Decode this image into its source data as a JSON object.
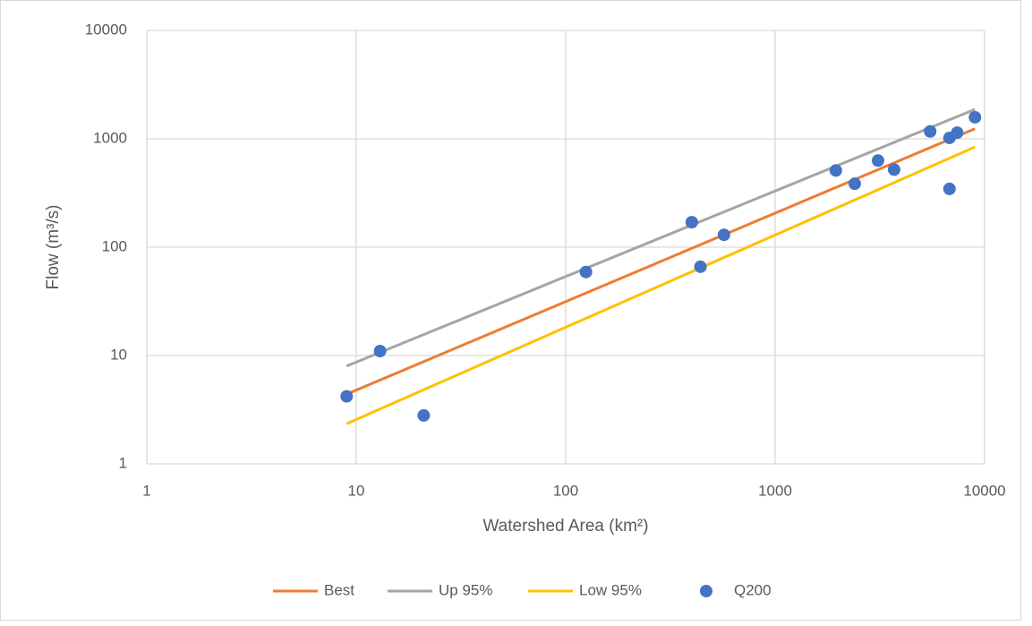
{
  "chart_data": {
    "type": "scatter",
    "x_label": "Watershed Area (km²)",
    "y_label": "Flow (m³/s)",
    "xscale": "log",
    "yscale": "log",
    "xlim": [
      1,
      10000
    ],
    "ylim": [
      1,
      10000
    ],
    "xticks": [
      1,
      10,
      100,
      1000,
      10000
    ],
    "yticks": [
      1,
      10,
      100,
      1000,
      10000
    ],
    "grid": true,
    "legend": "bottom",
    "series": [
      {
        "name": "Best",
        "kind": "line",
        "color": "#ed7d31",
        "x": [
          9,
          9000
        ],
        "values": [
          4.4,
          1240
        ]
      },
      {
        "name": "Up 95%",
        "kind": "line",
        "color": "#a5a5a5",
        "x": [
          9,
          9000
        ],
        "values": [
          8,
          1870
        ]
      },
      {
        "name": "Low 95%",
        "kind": "line",
        "color": "#ffc000",
        "x": [
          9,
          9000
        ],
        "values": [
          2.35,
          840
        ]
      },
      {
        "name": "Q200",
        "kind": "scatter",
        "color": "#4472c4",
        "x": [
          9,
          13,
          21,
          125,
          400,
          440,
          570,
          1950,
          2400,
          3100,
          3700,
          5500,
          6800,
          6800,
          7400,
          9000
        ],
        "values": [
          4.2,
          11,
          2.8,
          59,
          170,
          66,
          130,
          510,
          385,
          630,
          520,
          1170,
          1020,
          345,
          1140,
          1580
        ]
      }
    ]
  }
}
